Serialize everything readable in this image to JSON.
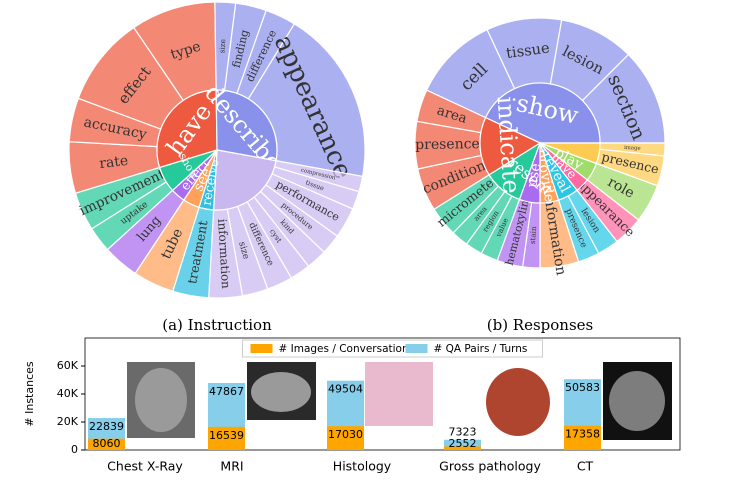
{
  "chart_data": [
    {
      "type": "sunburst",
      "title": "(a) Instruction",
      "segments": [
        {
          "label": "have",
          "color": "#ee5a40",
          "children": [
            {
              "label": "rate",
              "value": 20
            },
            {
              "label": "accuracy",
              "value": 17
            },
            {
              "label": "effect",
              "value": 35
            },
            {
              "label": "type",
              "value": 33
            }
          ]
        },
        {
          "label": "describe",
          "color": "#8a91ea",
          "children": [
            {
              "label": "size",
              "value": 8
            },
            {
              "label": "finding",
              "value": 12
            },
            {
              "label": "difference",
              "value": 12
            },
            {
              "label": "appearance",
              "value": 68
            }
          ]
        },
        {
          "label": null,
          "color": "#c9b8f0",
          "children": [
            {
              "label": "compression",
              "value": 6
            },
            {
              "label": "tissue",
              "value": 7
            },
            {
              "label": "performance",
              "value": 12
            },
            {
              "label": "procedure",
              "value": 8
            },
            {
              "label": "kind",
              "value": 8
            },
            {
              "label": "cyst",
              "value": 8
            },
            {
              "label": "difference",
              "value": 10
            },
            {
              "label": "size",
              "value": 10
            },
            {
              "label": "information",
              "value": 13
            }
          ]
        },
        {
          "label": "receive",
          "color": "#2fc0e2",
          "children": [
            {
              "label": "treatment",
              "value": 14
            }
          ]
        },
        {
          "label": "see",
          "color": "#ffa15a",
          "children": [
            {
              "label": "tube",
              "value": 16
            }
          ]
        },
        {
          "label": "effect",
          "color": "#a96bef",
          "children": [
            {
              "label": "lung",
              "value": 14
            }
          ]
        },
        {
          "label": "show",
          "color": "#25c99a",
          "children": [
            {
              "label": "uptake",
              "value": 10
            },
            {
              "label": "improvement",
              "value": 15
            }
          ]
        }
      ]
    },
    {
      "type": "sunburst",
      "title": "(b) Responses",
      "segments": [
        {
          "label": "show",
          "color": "#8a91ea",
          "children": [
            {
              "label": "cell",
              "value": 40
            },
            {
              "label": "tissue",
              "value": 35
            },
            {
              "label": "lesion",
              "value": 35
            },
            {
              "label": "section",
              "value": 45
            }
          ]
        },
        {
          "label": null,
          "color": "#fecb52",
          "children": [
            {
              "label": "image",
              "value": 6
            },
            {
              "label": "presence",
              "value": 14
            }
          ]
        },
        {
          "label": "play",
          "color": "#9fdc6a",
          "children": [
            {
              "label": "role",
              "value": 18
            }
          ]
        },
        {
          "label": "have",
          "color": "#ff6aa0",
          "children": [
            {
              "label": "appearance",
              "value": 14
            }
          ]
        },
        {
          "label": "reveal",
          "color": "#29c7e6",
          "children": [
            {
              "label": "lesion",
              "value": 10
            },
            {
              "label": "presence",
              "value": 10
            }
          ]
        },
        {
          "label": "provide",
          "color": "#ffa15a",
          "children": [
            {
              "label": "information",
              "value": 18
            }
          ]
        },
        {
          "label": "use",
          "color": "#a96bef",
          "children": [
            {
              "label": "stain",
              "value": 8
            },
            {
              "label": "hematoxylin",
              "value": 12
            }
          ]
        },
        {
          "label": "represent",
          "color": "#25c99a",
          "children": [
            {
              "label": "value",
              "value": 8
            },
            {
              "label": "region",
              "value": 8
            },
            {
              "label": "area",
              "value": 8
            },
            {
              "label": "micrometer",
              "value": 14
            }
          ]
        },
        {
          "label": "indicate",
          "color": "#ee5a40",
          "children": [
            {
              "label": "condition",
              "value": 20
            },
            {
              "label": "presence",
              "value": 22
            },
            {
              "label": "area",
              "value": 15
            }
          ]
        }
      ]
    },
    {
      "type": "bar",
      "ylabel": "# Instances",
      "legend": "upper center",
      "categories": [
        "Chest X-Ray",
        "MRI",
        "Histology",
        "Gross pathology",
        "CT"
      ],
      "series": [
        {
          "name": "# QA Pairs / Turns",
          "color": "#87ceeb",
          "values": [
            22839,
            47867,
            49504,
            7323,
            50583
          ]
        },
        {
          "name": "# Images / Conversation",
          "color": "#ffa500",
          "values": [
            8060,
            16539,
            17030,
            2552,
            17358
          ]
        }
      ],
      "ylim": [
        0,
        80000
      ],
      "yticks": [
        0,
        {
          "value": 20000,
          "label": "20K"
        },
        {
          "value": 40000,
          "label": "40K"
        },
        {
          "value": 60000,
          "label": "60K"
        }
      ]
    }
  ]
}
